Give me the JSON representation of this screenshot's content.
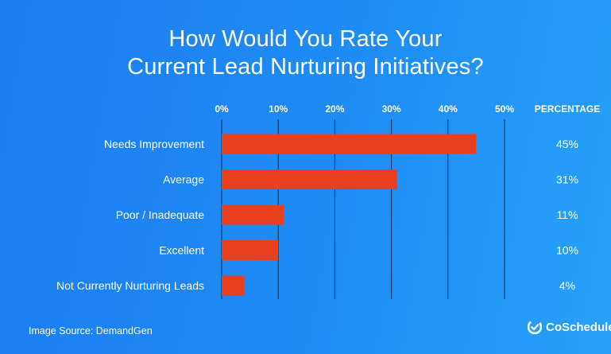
{
  "chart_data": {
    "type": "bar",
    "orientation": "horizontal",
    "title_lines": [
      "How Would You Rate Your",
      "Current Lead Nurturing Initiatives?"
    ],
    "categories": [
      "Needs Improvement",
      "Average",
      "Poor / Inadequate",
      "Excellent",
      "Not Currently Nurturing Leads"
    ],
    "values": [
      45,
      31,
      11,
      10,
      4
    ],
    "value_labels": [
      "45%",
      "31%",
      "11%",
      "10%",
      "4%"
    ],
    "xlim": [
      0,
      50
    ],
    "ticks": [
      0,
      10,
      20,
      30,
      40,
      50
    ],
    "tick_labels": [
      "0%",
      "10%",
      "20%",
      "30%",
      "40%",
      "50%"
    ],
    "value_column_header": "PERCENTAGE",
    "grid": true,
    "bar_color": "#e8401f"
  },
  "footer": {
    "source": "Image Source: DemandGen",
    "brand": "CoSchedule"
  }
}
